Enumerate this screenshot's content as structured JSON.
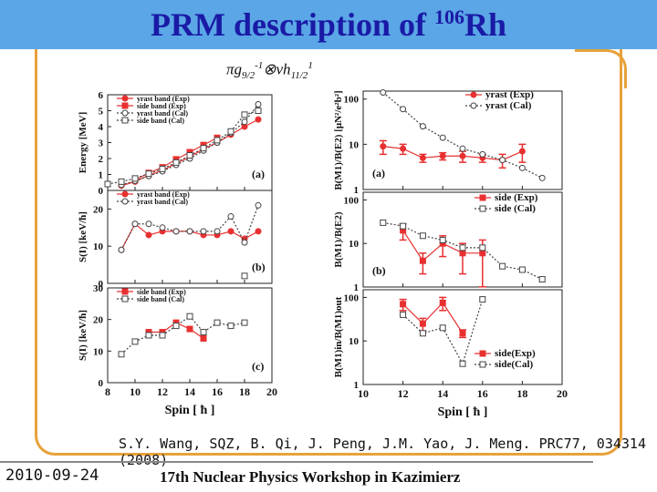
{
  "slide": {
    "title_main": "PRM description of ",
    "title_mass": "106",
    "title_element": "Rh",
    "config_pi": "πg",
    "config_g_sub": "9/2",
    "config_g_sup": "-1",
    "config_otimes": "⊗",
    "config_nu": "νh",
    "config_h_sub": "11/2",
    "config_h_sup": "1",
    "citation": "S.Y. Wang, SQZ, B. Qi, J. Peng, J.M. Yao, J. Meng. PRC77, 034314 (2008)",
    "date": "2010-09-24",
    "workshop": "17th Nuclear Physics Workshop in Kazimierz"
  },
  "colors": {
    "title_bar": "#5aa6e6",
    "title_text": "#1a1aa6",
    "frame": "#e8a23a",
    "exp": "#e83030",
    "cal": "#444444"
  },
  "chart_data": [
    {
      "id": "a",
      "type": "line",
      "panel_label": "(a)",
      "ylabel": "Energy [MeV]",
      "xlim": [
        8,
        20
      ],
      "ylim": [
        0,
        6
      ],
      "yticks": [
        0,
        1,
        2,
        3,
        4,
        5,
        6
      ],
      "xticks": [
        8,
        10,
        12,
        14,
        16,
        18,
        20
      ],
      "series": [
        {
          "name": "yrast band (Exp)",
          "marker": "circle",
          "filled": true,
          "x": [
            9,
            10,
            11,
            12,
            13,
            14,
            15,
            16,
            17,
            18,
            19
          ],
          "y": [
            0.3,
            0.55,
            0.95,
            1.25,
            1.7,
            2.1,
            2.6,
            3.0,
            3.5,
            4.0,
            4.45
          ]
        },
        {
          "name": "side band (Exp)",
          "marker": "square",
          "filled": true,
          "x": [
            10,
            11,
            12,
            13,
            14,
            15,
            16
          ],
          "y": [
            0.65,
            1.1,
            1.45,
            1.95,
            2.4,
            2.85,
            3.3
          ]
        },
        {
          "name": "yrast band (Cal)",
          "marker": "circle",
          "filled": false,
          "x": [
            9,
            10,
            11,
            12,
            13,
            14,
            15,
            16,
            17,
            18,
            19
          ],
          "y": [
            0.35,
            0.6,
            0.9,
            1.2,
            1.6,
            2.0,
            2.5,
            3.0,
            3.6,
            4.3,
            5.4
          ]
        },
        {
          "name": "side band (Cal)",
          "marker": "square",
          "filled": false,
          "x": [
            8,
            9,
            10,
            11,
            12,
            13,
            14,
            15,
            16,
            17,
            18,
            19
          ],
          "y": [
            0.4,
            0.55,
            0.75,
            1.05,
            1.35,
            1.75,
            2.2,
            2.65,
            3.15,
            3.7,
            4.75,
            5.0
          ]
        }
      ]
    },
    {
      "id": "b",
      "type": "line",
      "panel_label": "(b)",
      "ylabel": "S(I) [keV/ħ]",
      "xlim": [
        8,
        20
      ],
      "ylim": [
        0,
        25
      ],
      "yticks": [
        0,
        10,
        20
      ],
      "xticks": [
        8,
        10,
        12,
        14,
        16,
        18,
        20
      ],
      "series": [
        {
          "name": "yrast band (Exp)",
          "marker": "circle",
          "filled": true,
          "x": [
            9,
            10,
            11,
            12,
            13,
            14,
            15,
            16,
            17,
            18,
            19
          ],
          "y": [
            9,
            16,
            13,
            14,
            14,
            14,
            13,
            13,
            14,
            12,
            14
          ]
        },
        {
          "name": "yrast band (Cal)",
          "marker": "circle",
          "filled": false,
          "x": [
            9,
            10,
            11,
            12,
            13,
            14,
            15,
            16,
            17,
            18,
            19
          ],
          "y": [
            9,
            16,
            16,
            15,
            14,
            14,
            14,
            14,
            18,
            11,
            21
          ]
        },
        {
          "name": "",
          "marker": "square",
          "filled": false,
          "x": [
            18
          ],
          "y": [
            2
          ]
        }
      ]
    },
    {
      "id": "c",
      "type": "line",
      "panel_label": "(c)",
      "ylabel": "S(I) [keV/ħ]",
      "xlim": [
        8,
        20
      ],
      "ylim": [
        0,
        30
      ],
      "yticks": [
        0,
        10,
        20,
        30
      ],
      "xticks": [
        8,
        10,
        12,
        14,
        16,
        18,
        20
      ],
      "xlabel": "Spin [ ħ ]",
      "series": [
        {
          "name": "side band (Exp)",
          "marker": "square",
          "filled": true,
          "x": [
            11,
            12,
            13,
            14,
            15
          ],
          "y": [
            16,
            16,
            19,
            17,
            14
          ]
        },
        {
          "name": "side band (Cal)",
          "marker": "square",
          "filled": false,
          "x": [
            9,
            10,
            11,
            12,
            13,
            14,
            15,
            16,
            17,
            18
          ],
          "y": [
            9,
            13,
            15,
            15,
            18,
            21,
            16,
            19,
            18,
            19
          ]
        }
      ]
    },
    {
      "id": "d",
      "type": "line",
      "panel_label": "(a)",
      "yscale": "log",
      "ylabel": "B(M1)/B(E2) [μN²/e²b²]",
      "xlim": [
        10,
        20
      ],
      "ylim": [
        1,
        150
      ],
      "yticks": [
        1,
        10,
        100
      ],
      "xticks": [
        10,
        12,
        14,
        16,
        18,
        20
      ],
      "series": [
        {
          "name": "yrast (Exp)",
          "marker": "circle",
          "filled": true,
          "x": [
            11,
            12,
            13,
            14,
            15,
            16,
            17,
            18
          ],
          "y": [
            9,
            8,
            5,
            5.5,
            5.5,
            5,
            4.5,
            7
          ],
          "err": [
            3,
            2,
            1,
            1,
            1.5,
            1,
            1.5,
            3
          ]
        },
        {
          "name": "yrast (Cal)",
          "marker": "circle",
          "filled": false,
          "x": [
            11,
            12,
            13,
            14,
            15,
            16,
            17,
            18,
            19
          ],
          "y": [
            140,
            60,
            25,
            14,
            8,
            6,
            4.5,
            3,
            1.8
          ]
        }
      ]
    },
    {
      "id": "e",
      "type": "line",
      "panel_label": "(b)",
      "yscale": "log",
      "ylabel": "B(M1)/B(E2)",
      "xlim": [
        10,
        20
      ],
      "ylim": [
        1,
        150
      ],
      "yticks": [
        1,
        10,
        100
      ],
      "xticks": [
        10,
        12,
        14,
        16,
        18,
        20
      ],
      "series": [
        {
          "name": "side (Exp)",
          "marker": "square",
          "filled": true,
          "x": [
            12,
            13,
            14,
            15,
            16
          ],
          "y": [
            20,
            4,
            10,
            6,
            6
          ],
          "err": [
            8,
            2,
            5,
            4,
            6
          ]
        },
        {
          "name": "side (Cal)",
          "marker": "square",
          "filled": false,
          "x": [
            11,
            12,
            13,
            14,
            15,
            16,
            17,
            18,
            19
          ],
          "y": [
            30,
            25,
            15,
            12,
            8,
            8,
            3,
            2.5,
            1.5
          ]
        }
      ]
    },
    {
      "id": "f",
      "type": "line",
      "panel_label": "",
      "yscale": "log",
      "ylabel": "B(M1)in/B(M1)out",
      "xlabel": "Spin [ ħ ]",
      "xlim": [
        10,
        20
      ],
      "ylim": [
        1,
        150
      ],
      "yticks": [
        1,
        10,
        100
      ],
      "xticks": [
        10,
        12,
        14,
        16,
        18,
        20
      ],
      "series": [
        {
          "name": "side(Exp)",
          "marker": "square",
          "filled": true,
          "x": [
            12,
            13,
            14,
            15
          ],
          "y": [
            70,
            25,
            75,
            15
          ],
          "err": [
            20,
            8,
            25,
            3
          ]
        },
        {
          "name": "side(Cal)",
          "marker": "square",
          "filled": false,
          "x": [
            12,
            13,
            14,
            15,
            16
          ],
          "y": [
            40,
            15,
            20,
            3,
            90
          ]
        }
      ]
    }
  ]
}
